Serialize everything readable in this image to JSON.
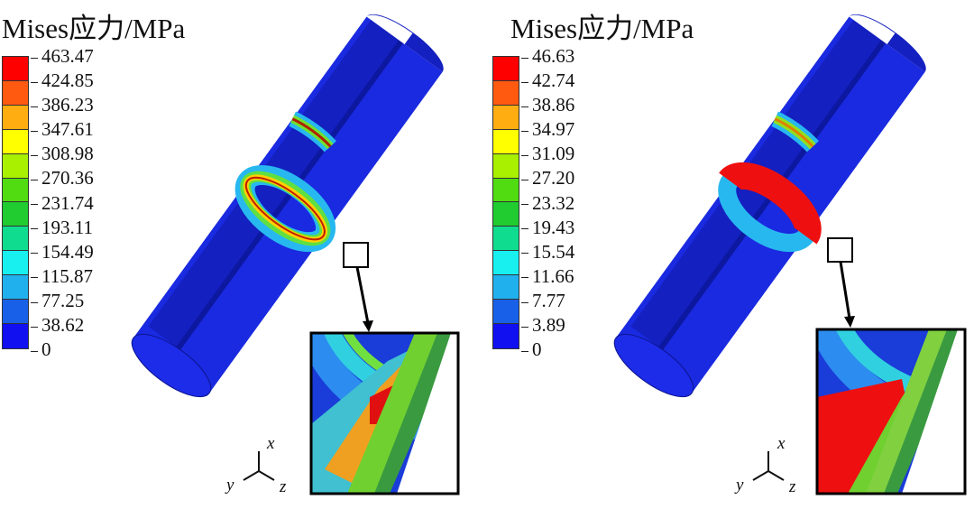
{
  "panels": [
    {
      "title": "Mises应力/MPa",
      "legend_values": [
        "463.47",
        "424.85",
        "386.23",
        "347.61",
        "308.98",
        "270.36",
        "231.74",
        "193.11",
        "154.49",
        "115.87",
        "77.25",
        "38.62",
        "0"
      ]
    },
    {
      "title": "Mises应力/MPa",
      "legend_values": [
        "46.63",
        "42.74",
        "38.86",
        "34.97",
        "31.09",
        "27.20",
        "23.32",
        "19.43",
        "15.54",
        "11.66",
        "7.77",
        "3.89",
        "0"
      ]
    }
  ],
  "legend_colors": [
    "#ff0000",
    "#ff5a10",
    "#ffad10",
    "#ffff00",
    "#a8f000",
    "#50dc10",
    "#20cc30",
    "#10dc90",
    "#18f0f0",
    "#20b0ee",
    "#1860e8",
    "#1010f0"
  ],
  "axis_labels": {
    "x": "x",
    "y": "y",
    "z": "z"
  }
}
